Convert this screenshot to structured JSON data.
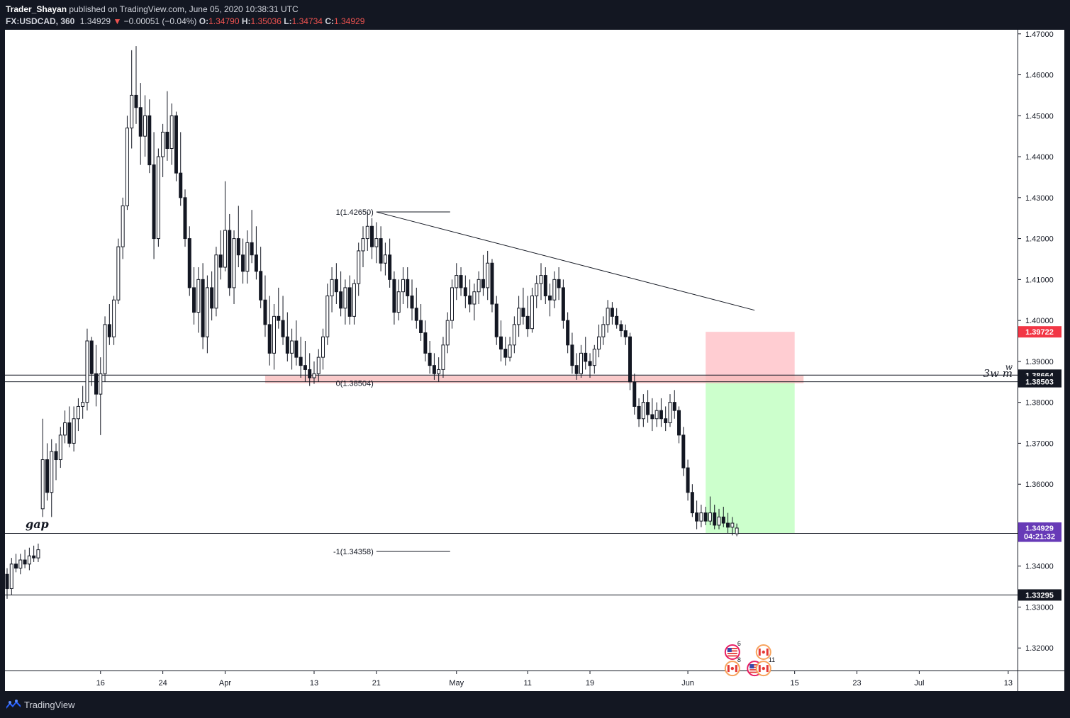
{
  "header": {
    "author": "Trader_Shayan",
    "published_text": "published on TradingView.com, June 05, 2020 10:38:31 UTC",
    "symbol": "FX:USDCAD, 360",
    "last": "1.34929",
    "down_arrow": "▼",
    "change": "−0.00051 (−0.04%)",
    "o_label": "O:",
    "o_value": "1.34790",
    "h_label": "H:",
    "h_value": "1.35036",
    "l_label": "L:",
    "l_value": "1.34734",
    "c_label": "C:",
    "c_value": "1.34929"
  },
  "footer": {
    "brand": "TradingView",
    "logo_icon": "tradingview-logo-icon"
  },
  "colors": {
    "bg": "#131722",
    "pane": "#ffffff",
    "candle": "#131722",
    "loss_zone": "#ffcdd2",
    "profit_zone": "#ccffcc",
    "fib_zone": "#f8bbbb",
    "price_tag": "#673ab7",
    "stop_tag": "#f23645"
  },
  "chart_data": {
    "type": "candlestick",
    "title": "USDCAD, 360",
    "ylim": [
      1.3145,
      1.471
    ],
    "y_ticks": [
      {
        "v": 1.47,
        "t": "1.47000"
      },
      {
        "v": 1.46,
        "t": "1.46000"
      },
      {
        "v": 1.45,
        "t": "1.45000"
      },
      {
        "v": 1.44,
        "t": "1.44000"
      },
      {
        "v": 1.43,
        "t": "1.43000"
      },
      {
        "v": 1.42,
        "t": "1.42000"
      },
      {
        "v": 1.41,
        "t": "1.41000"
      },
      {
        "v": 1.4,
        "t": "1.40000"
      },
      {
        "v": 1.39,
        "t": "1.39000"
      },
      {
        "v": 1.38,
        "t": "1.38000"
      },
      {
        "v": 1.37,
        "t": "1.37000"
      },
      {
        "v": 1.36,
        "t": "1.36000"
      },
      {
        "v": 1.34,
        "t": "1.34000"
      },
      {
        "v": 1.33,
        "t": "1.33000"
      },
      {
        "v": 1.32,
        "t": "1.32000"
      }
    ],
    "x_ticks": [
      {
        "i": 21,
        "t": "16"
      },
      {
        "i": 35,
        "t": "24"
      },
      {
        "i": 49,
        "t": "Apr"
      },
      {
        "i": 69,
        "t": "13"
      },
      {
        "i": 83,
        "t": "21"
      },
      {
        "i": 101,
        "t": "May"
      },
      {
        "i": 117,
        "t": "11"
      },
      {
        "i": 131,
        "t": "19"
      },
      {
        "i": 153,
        "t": "Jun"
      },
      {
        "i": 177,
        "t": "15"
      },
      {
        "i": 191,
        "t": "23"
      },
      {
        "i": 205,
        "t": "Jul"
      },
      {
        "i": 225,
        "t": "13"
      }
    ],
    "candles": [
      [
        1.338,
        1.3395,
        1.332,
        1.3345
      ],
      [
        1.3345,
        1.342,
        1.333,
        1.3405
      ],
      [
        1.3405,
        1.343,
        1.3385,
        1.3395
      ],
      [
        1.3395,
        1.343,
        1.338,
        1.3415
      ],
      [
        1.3415,
        1.344,
        1.3395,
        1.3405
      ],
      [
        1.3405,
        1.3445,
        1.339,
        1.3425
      ],
      [
        1.3425,
        1.345,
        1.341,
        1.342
      ],
      [
        1.342,
        1.3455,
        1.341,
        1.344
      ],
      [
        1.354,
        1.376,
        1.352,
        1.366
      ],
      [
        1.366,
        1.37,
        1.356,
        1.358
      ],
      [
        1.358,
        1.371,
        1.352,
        1.368
      ],
      [
        1.368,
        1.37,
        1.361,
        1.366
      ],
      [
        1.366,
        1.374,
        1.364,
        1.372
      ],
      [
        1.372,
        1.378,
        1.37,
        1.375
      ],
      [
        1.375,
        1.379,
        1.369,
        1.37
      ],
      [
        1.37,
        1.379,
        1.368,
        1.376
      ],
      [
        1.376,
        1.381,
        1.373,
        1.379
      ],
      [
        1.379,
        1.384,
        1.376,
        1.38
      ],
      [
        1.38,
        1.398,
        1.378,
        1.395
      ],
      [
        1.395,
        1.396,
        1.384,
        1.387
      ],
      [
        1.387,
        1.394,
        1.379,
        1.382
      ],
      [
        1.382,
        1.391,
        1.372,
        1.387
      ],
      [
        1.387,
        1.401,
        1.385,
        1.399
      ],
      [
        1.399,
        1.404,
        1.394,
        1.396
      ],
      [
        1.396,
        1.406,
        1.394,
        1.405
      ],
      [
        1.405,
        1.42,
        1.404,
        1.418
      ],
      [
        1.418,
        1.43,
        1.415,
        1.428
      ],
      [
        1.428,
        1.45,
        1.427,
        1.447
      ],
      [
        1.447,
        1.466,
        1.442,
        1.455
      ],
      [
        1.455,
        1.467,
        1.448,
        1.452
      ],
      [
        1.452,
        1.458,
        1.438,
        1.445
      ],
      [
        1.445,
        1.455,
        1.44,
        1.45
      ],
      [
        1.45,
        1.454,
        1.436,
        1.438
      ],
      [
        1.438,
        1.446,
        1.415,
        1.42
      ],
      [
        1.42,
        1.442,
        1.418,
        1.44
      ],
      [
        1.44,
        1.448,
        1.435,
        1.446
      ],
      [
        1.446,
        1.456,
        1.439,
        1.442
      ],
      [
        1.442,
        1.453,
        1.438,
        1.45
      ],
      [
        1.45,
        1.451,
        1.434,
        1.436
      ],
      [
        1.436,
        1.446,
        1.428,
        1.43
      ],
      [
        1.43,
        1.432,
        1.418,
        1.42
      ],
      [
        1.42,
        1.423,
        1.406,
        1.408
      ],
      [
        1.408,
        1.413,
        1.399,
        1.402
      ],
      [
        1.402,
        1.413,
        1.397,
        1.41
      ],
      [
        1.41,
        1.414,
        1.393,
        1.396
      ],
      [
        1.396,
        1.411,
        1.392,
        1.408
      ],
      [
        1.408,
        1.412,
        1.4,
        1.403
      ],
      [
        1.403,
        1.418,
        1.401,
        1.416
      ],
      [
        1.416,
        1.422,
        1.41,
        1.413
      ],
      [
        1.413,
        1.434,
        1.412,
        1.422
      ],
      [
        1.422,
        1.426,
        1.406,
        1.408
      ],
      [
        1.408,
        1.422,
        1.404,
        1.42
      ],
      [
        1.42,
        1.428,
        1.413,
        1.416
      ],
      [
        1.416,
        1.42,
        1.409,
        1.412
      ],
      [
        1.412,
        1.422,
        1.409,
        1.419
      ],
      [
        1.419,
        1.427,
        1.414,
        1.416
      ],
      [
        1.416,
        1.423,
        1.41,
        1.412
      ],
      [
        1.412,
        1.418,
        1.403,
        1.405
      ],
      [
        1.405,
        1.411,
        1.396,
        1.399
      ],
      [
        1.399,
        1.406,
        1.389,
        1.392
      ],
      [
        1.392,
        1.404,
        1.388,
        1.401
      ],
      [
        1.401,
        1.408,
        1.398,
        1.4
      ],
      [
        1.4,
        1.406,
        1.394,
        1.396
      ],
      [
        1.396,
        1.402,
        1.39,
        1.392
      ],
      [
        1.392,
        1.398,
        1.388,
        1.395
      ],
      [
        1.395,
        1.4,
        1.389,
        1.391
      ],
      [
        1.391,
        1.396,
        1.386,
        1.389
      ],
      [
        1.389,
        1.395,
        1.385,
        1.388
      ],
      [
        1.388,
        1.392,
        1.384,
        1.386
      ],
      [
        1.386,
        1.39,
        1.3845,
        1.387
      ],
      [
        1.387,
        1.393,
        1.385,
        1.391
      ],
      [
        1.391,
        1.398,
        1.388,
        1.396
      ],
      [
        1.396,
        1.409,
        1.394,
        1.406
      ],
      [
        1.406,
        1.413,
        1.402,
        1.41
      ],
      [
        1.41,
        1.414,
        1.404,
        1.407
      ],
      [
        1.407,
        1.412,
        1.401,
        1.403
      ],
      [
        1.403,
        1.41,
        1.399,
        1.408
      ],
      [
        1.408,
        1.411,
        1.399,
        1.401
      ],
      [
        1.401,
        1.41,
        1.399,
        1.409
      ],
      [
        1.409,
        1.419,
        1.406,
        1.417
      ],
      [
        1.417,
        1.423,
        1.413,
        1.42
      ],
      [
        1.42,
        1.4265,
        1.417,
        1.423
      ],
      [
        1.423,
        1.425,
        1.415,
        1.418
      ],
      [
        1.418,
        1.424,
        1.414,
        1.42
      ],
      [
        1.42,
        1.423,
        1.412,
        1.414
      ],
      [
        1.414,
        1.419,
        1.411,
        1.416
      ],
      [
        1.416,
        1.42,
        1.408,
        1.41
      ],
      [
        1.41,
        1.412,
        1.399,
        1.402
      ],
      [
        1.402,
        1.41,
        1.4,
        1.407
      ],
      [
        1.407,
        1.413,
        1.404,
        1.41
      ],
      [
        1.41,
        1.413,
        1.403,
        1.406
      ],
      [
        1.406,
        1.41,
        1.4,
        1.403
      ],
      [
        1.403,
        1.408,
        1.398,
        1.4
      ],
      [
        1.4,
        1.404,
        1.395,
        1.397
      ],
      [
        1.397,
        1.4,
        1.39,
        1.392
      ],
      [
        1.392,
        1.395,
        1.387,
        1.389
      ],
      [
        1.389,
        1.392,
        1.3855,
        1.387
      ],
      [
        1.387,
        1.391,
        1.385,
        1.388
      ],
      [
        1.388,
        1.396,
        1.386,
        1.394
      ],
      [
        1.394,
        1.402,
        1.392,
        1.4
      ],
      [
        1.4,
        1.41,
        1.398,
        1.408
      ],
      [
        1.408,
        1.414,
        1.405,
        1.411
      ],
      [
        1.411,
        1.413,
        1.406,
        1.408
      ],
      [
        1.408,
        1.411,
        1.403,
        1.406
      ],
      [
        1.406,
        1.41,
        1.402,
        1.404
      ],
      [
        1.404,
        1.409,
        1.4,
        1.407
      ],
      [
        1.407,
        1.412,
        1.404,
        1.41
      ],
      [
        1.41,
        1.416,
        1.406,
        1.408
      ],
      [
        1.408,
        1.417,
        1.405,
        1.414
      ],
      [
        1.414,
        1.415,
        1.402,
        1.404
      ],
      [
        1.404,
        1.406,
        1.394,
        1.396
      ],
      [
        1.396,
        1.4,
        1.39,
        1.393
      ],
      [
        1.393,
        1.396,
        1.389,
        1.391
      ],
      [
        1.391,
        1.396,
        1.39,
        1.394
      ],
      [
        1.394,
        1.401,
        1.392,
        1.399
      ],
      [
        1.399,
        1.406,
        1.396,
        1.403
      ],
      [
        1.403,
        1.408,
        1.399,
        1.401
      ],
      [
        1.401,
        1.406,
        1.396,
        1.398
      ],
      [
        1.398,
        1.408,
        1.397,
        1.406
      ],
      [
        1.406,
        1.411,
        1.403,
        1.409
      ],
      [
        1.409,
        1.414,
        1.405,
        1.411
      ],
      [
        1.411,
        1.413,
        1.404,
        1.406
      ],
      [
        1.406,
        1.409,
        1.401,
        1.405
      ],
      [
        1.405,
        1.412,
        1.403,
        1.41
      ],
      [
        1.41,
        1.413,
        1.405,
        1.408
      ],
      [
        1.408,
        1.41,
        1.398,
        1.4
      ],
      [
        1.4,
        1.402,
        1.392,
        1.394
      ],
      [
        1.394,
        1.397,
        1.387,
        1.389
      ],
      [
        1.389,
        1.392,
        1.3855,
        1.387
      ],
      [
        1.387,
        1.394,
        1.386,
        1.392
      ],
      [
        1.392,
        1.396,
        1.388,
        1.39
      ],
      [
        1.39,
        1.392,
        1.386,
        1.389
      ],
      [
        1.389,
        1.394,
        1.387,
        1.393
      ],
      [
        1.393,
        1.399,
        1.391,
        1.396
      ],
      [
        1.396,
        1.401,
        1.394,
        1.399
      ],
      [
        1.399,
        1.405,
        1.397,
        1.403
      ],
      [
        1.403,
        1.4045,
        1.399,
        1.401
      ],
      [
        1.401,
        1.403,
        1.398,
        1.399
      ],
      [
        1.399,
        1.4,
        1.396,
        1.3975
      ],
      [
        1.3975,
        1.399,
        1.394,
        1.396
      ],
      [
        1.396,
        1.397,
        1.383,
        1.385
      ],
      [
        1.385,
        1.387,
        1.377,
        1.379
      ],
      [
        1.379,
        1.381,
        1.374,
        1.376
      ],
      [
        1.376,
        1.382,
        1.374,
        1.38
      ],
      [
        1.38,
        1.383,
        1.375,
        1.377
      ],
      [
        1.377,
        1.381,
        1.373,
        1.376
      ],
      [
        1.376,
        1.38,
        1.374,
        1.378
      ],
      [
        1.378,
        1.381,
        1.374,
        1.376
      ],
      [
        1.376,
        1.379,
        1.373,
        1.375
      ],
      [
        1.375,
        1.382,
        1.374,
        1.38
      ],
      [
        1.38,
        1.383,
        1.376,
        1.378
      ],
      [
        1.378,
        1.379,
        1.37,
        1.372
      ],
      [
        1.372,
        1.374,
        1.362,
        1.364
      ],
      [
        1.364,
        1.366,
        1.356,
        1.358
      ],
      [
        1.358,
        1.36,
        1.352,
        1.353
      ],
      [
        1.353,
        1.356,
        1.349,
        1.351
      ],
      [
        1.351,
        1.355,
        1.3495,
        1.353
      ],
      [
        1.353,
        1.3545,
        1.35,
        1.351
      ],
      [
        1.351,
        1.357,
        1.35,
        1.353
      ],
      [
        1.353,
        1.355,
        1.349,
        1.35
      ],
      [
        1.35,
        1.354,
        1.349,
        1.352
      ],
      [
        1.352,
        1.3545,
        1.3495,
        1.3505
      ],
      [
        1.3505,
        1.353,
        1.348,
        1.3495
      ],
      [
        1.3495,
        1.352,
        1.3475,
        1.3505
      ],
      [
        1.3479,
        1.3504,
        1.3473,
        1.3493
      ]
    ],
    "annotations": {
      "fib_top": {
        "price": 1.4265,
        "label": "1(1.42650)",
        "i": 83
      },
      "fib_zero": {
        "price": 1.38504,
        "label": "0(1.38504)",
        "i": 69
      },
      "fib_neg": {
        "price": 1.34358,
        "label": "-1(1.34358)",
        "i": 83
      },
      "trendline": {
        "start": [
          83,
          1.4265
        ],
        "end": [
          168,
          1.4025
        ]
      },
      "fib_zone": {
        "i_start": 58,
        "i_end": 179,
        "high": 1.3865,
        "low": 1.38504
      },
      "level_lines": [
        1.38664,
        1.38503,
        1.348,
        1.33295
      ],
      "position": {
        "i_start": 157,
        "i_end": 177,
        "stop": 1.39722,
        "entry": 1.38503,
        "target": 1.348
      },
      "gap_label": "gap",
      "wm_label": "3w m",
      "w_label": "w"
    },
    "price_tags": [
      {
        "price": 1.39722,
        "text": "1.39722",
        "color": "#f23645"
      },
      {
        "price": 1.38664,
        "text": "1.38664",
        "color": "#131722"
      },
      {
        "price": 1.38503,
        "text": "1.38503",
        "color": "#131722"
      },
      {
        "price": 1.34929,
        "text": "1.34929",
        "color": "#673ab7"
      },
      {
        "price": 1.3473,
        "text": "04:21:32",
        "color": "#673ab7"
      },
      {
        "price": 1.33295,
        "text": "1.33295",
        "color": "#131722"
      }
    ],
    "events": [
      {
        "i": 163,
        "price": 1.319,
        "flag": "us-flag-icon",
        "count": "6"
      },
      {
        "i": 170,
        "price": 1.319,
        "flag": "ca-flag-icon",
        "count": ""
      },
      {
        "i": 163,
        "price": 1.315,
        "flag": "ca-flag-icon",
        "count": "8"
      },
      {
        "i": 168,
        "price": 1.315,
        "flag": "us-flag-icon",
        "count": ""
      },
      {
        "i": 170,
        "price": 1.315,
        "flag": "ca-flag-icon",
        "count": "11"
      }
    ]
  }
}
